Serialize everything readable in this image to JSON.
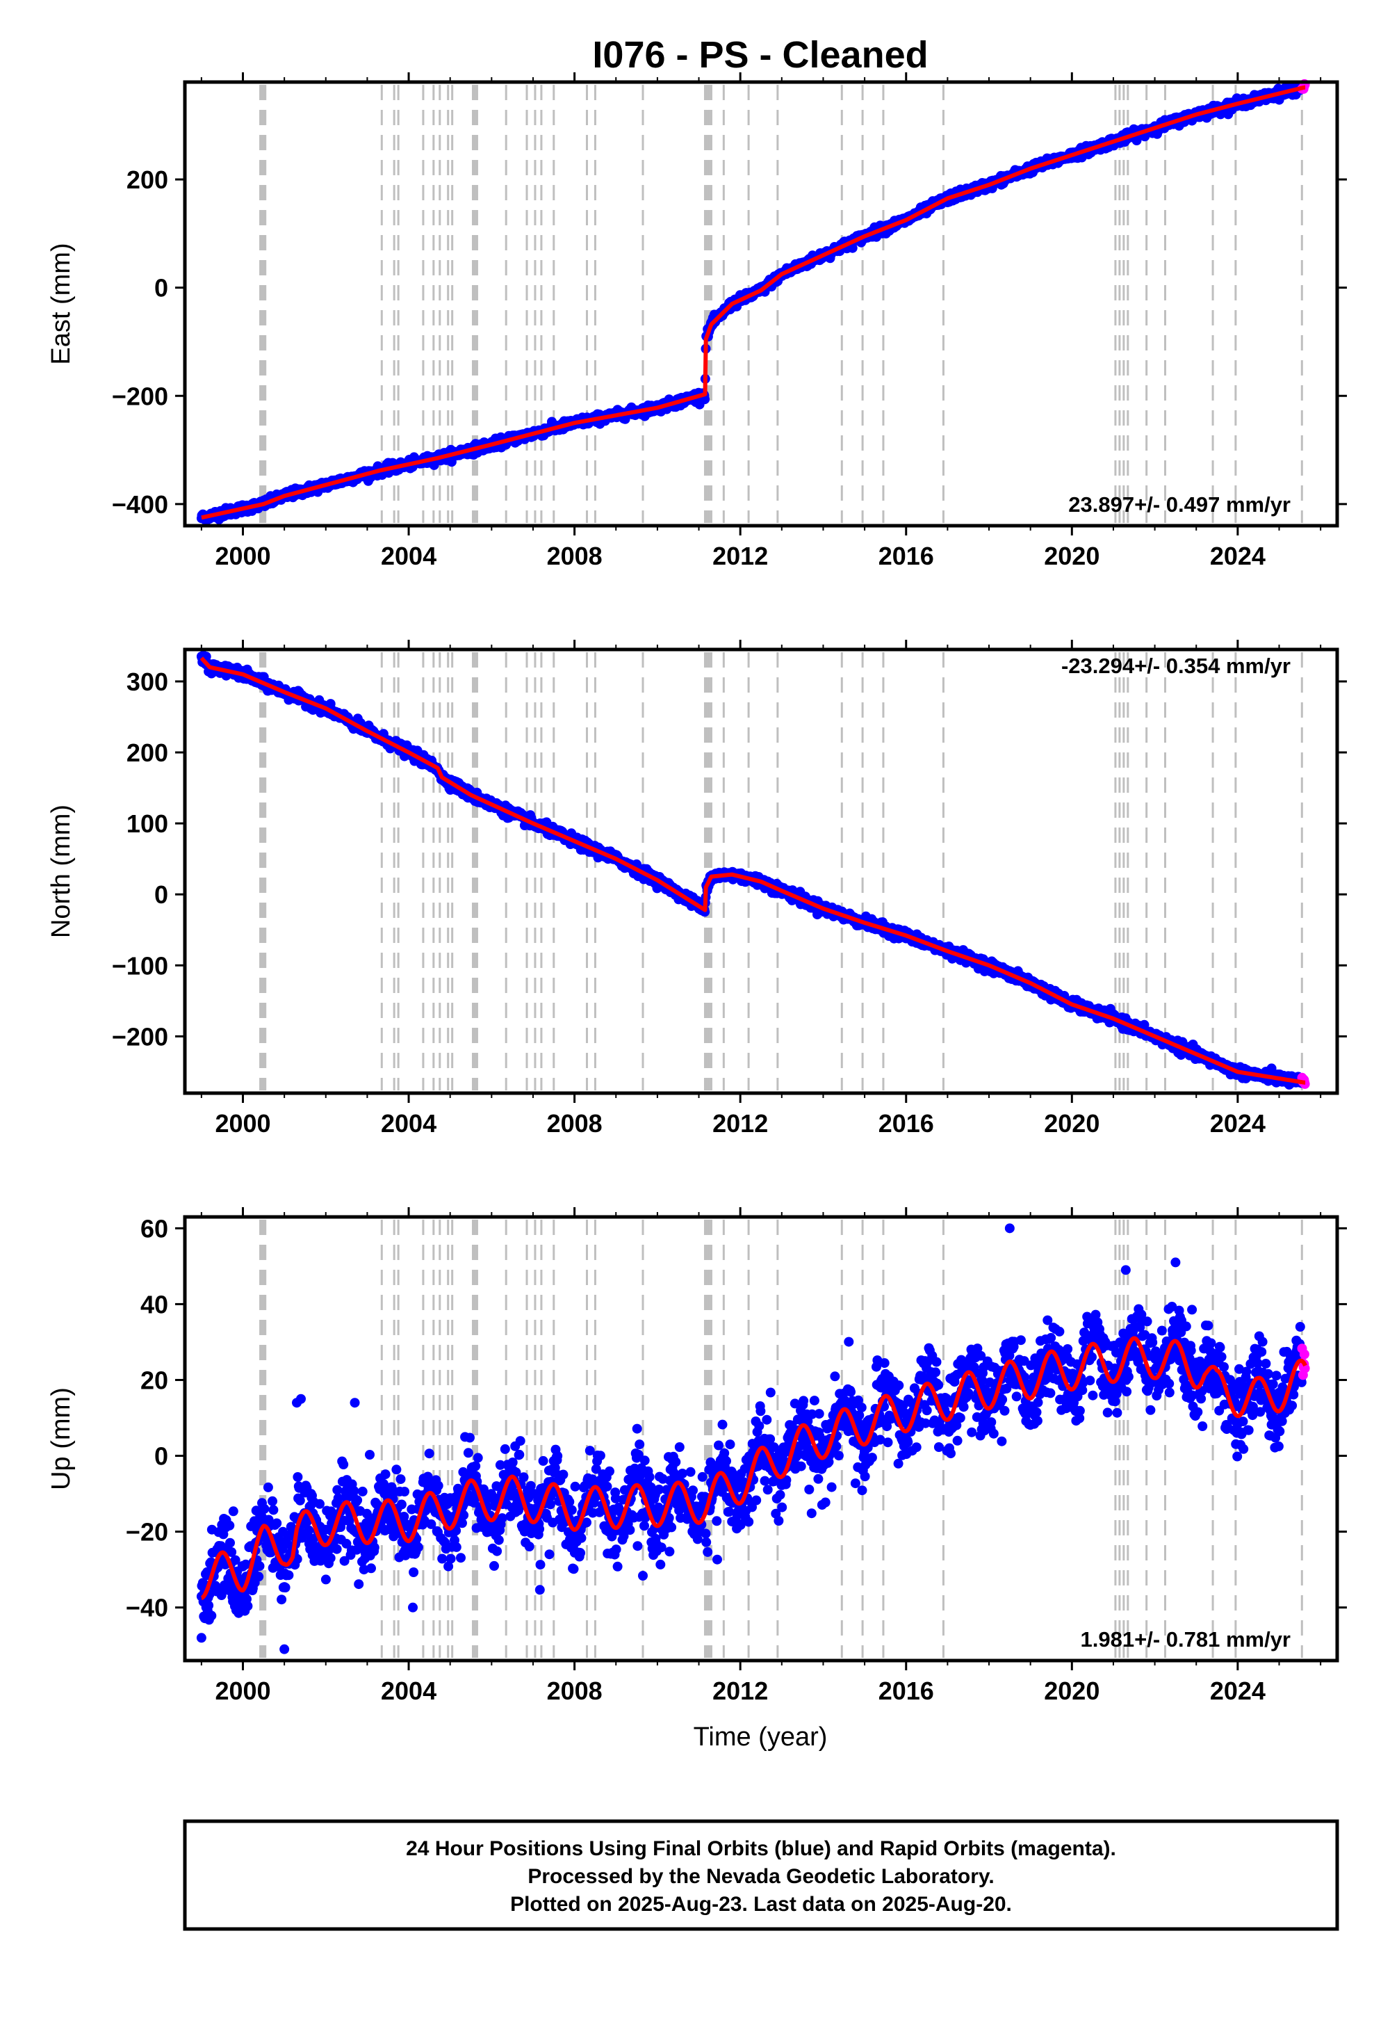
{
  "title": "I076  - PS - Cleaned",
  "xlabel": "Time (year)",
  "colors": {
    "final": "#0000ff",
    "rapid": "#ff00ff",
    "model": "#ff0000",
    "steps": "#bfbfbf"
  },
  "chart_data": [
    {
      "type": "scatter",
      "component": "east",
      "ylabel": "East (mm)",
      "xlim": [
        1998.6,
        2026.4
      ],
      "ylim": [
        -440,
        380
      ],
      "xticks": [
        2000,
        2004,
        2008,
        2012,
        2016,
        2020,
        2024
      ],
      "yticks": [
        -400,
        -200,
        0,
        200
      ],
      "rate_label": "23.897+/- 0.497 mm/yr",
      "series": {
        "knots": [
          [
            1999.0,
            -425
          ],
          [
            2000.5,
            -400
          ],
          [
            2001.0,
            -385
          ],
          [
            2003.3,
            -338
          ],
          [
            2004.7,
            -315
          ],
          [
            2006.0,
            -290
          ],
          [
            2008.0,
            -250
          ],
          [
            2010.0,
            -222
          ],
          [
            2011.15,
            -197
          ],
          [
            2011.17,
            -95
          ],
          [
            2011.3,
            -68
          ],
          [
            2011.8,
            -30
          ],
          [
            2012.5,
            -5
          ],
          [
            2013.0,
            25
          ],
          [
            2014.0,
            60
          ],
          [
            2015.0,
            95
          ],
          [
            2016.0,
            125
          ],
          [
            2017.0,
            165
          ],
          [
            2018.0,
            190
          ],
          [
            2019.0,
            220
          ],
          [
            2020.0,
            245
          ],
          [
            2021.0,
            270
          ],
          [
            2022.0,
            295
          ],
          [
            2023.0,
            320
          ],
          [
            2024.0,
            340
          ],
          [
            2025.6,
            370
          ]
        ],
        "scatter_sd": 4,
        "seasonal_amp": 0,
        "rapid_start": 2025.55
      }
    },
    {
      "type": "scatter",
      "component": "north",
      "ylabel": "North (mm)",
      "xlim": [
        1998.6,
        2026.4
      ],
      "ylim": [
        -280,
        345
      ],
      "xticks": [
        2000,
        2004,
        2008,
        2012,
        2016,
        2020,
        2024
      ],
      "yticks": [
        -200,
        -100,
        0,
        100,
        200,
        300
      ],
      "rate_label": "-23.294+/- 0.354 mm/yr",
      "series": {
        "knots": [
          [
            1999.0,
            333
          ],
          [
            1999.2,
            320
          ],
          [
            2000.0,
            310
          ],
          [
            2001.0,
            285
          ],
          [
            2002.0,
            262
          ],
          [
            2003.0,
            230
          ],
          [
            2004.0,
            200
          ],
          [
            2004.7,
            178
          ],
          [
            2004.8,
            165
          ],
          [
            2005.5,
            140
          ],
          [
            2007.0,
            100
          ],
          [
            2008.0,
            75
          ],
          [
            2009.0,
            50
          ],
          [
            2010.0,
            20
          ],
          [
            2011.15,
            -22
          ],
          [
            2011.17,
            10
          ],
          [
            2011.3,
            25
          ],
          [
            2011.8,
            28
          ],
          [
            2012.5,
            18
          ],
          [
            2013.0,
            5
          ],
          [
            2014.0,
            -20
          ],
          [
            2015.0,
            -40
          ],
          [
            2016.0,
            -58
          ],
          [
            2017.0,
            -80
          ],
          [
            2018.0,
            -100
          ],
          [
            2019.0,
            -125
          ],
          [
            2020.0,
            -155
          ],
          [
            2021.0,
            -175
          ],
          [
            2022.0,
            -200
          ],
          [
            2023.0,
            -225
          ],
          [
            2024.0,
            -250
          ],
          [
            2025.6,
            -265
          ]
        ],
        "scatter_sd": 3.5,
        "seasonal_amp": 0,
        "rapid_start": 2025.55
      }
    },
    {
      "type": "scatter",
      "component": "up",
      "ylabel": "Up (mm)",
      "xlim": [
        1998.6,
        2026.4
      ],
      "ylim": [
        -54,
        63
      ],
      "xticks": [
        2000,
        2004,
        2008,
        2012,
        2016,
        2020,
        2024
      ],
      "yticks": [
        -40,
        -20,
        0,
        20,
        40,
        60
      ],
      "rate_label": "1.981+/- 0.781 mm/yr",
      "series": {
        "knots": [
          [
            1999.0,
            -32
          ],
          [
            2000.0,
            -30
          ],
          [
            2000.5,
            -24
          ],
          [
            2001.0,
            -23
          ],
          [
            2001.2,
            -25
          ],
          [
            2001.3,
            -21
          ],
          [
            2002.0,
            -18
          ],
          [
            2004.0,
            -17
          ],
          [
            2005.5,
            -12
          ],
          [
            2006.5,
            -11
          ],
          [
            2008.0,
            -14
          ],
          [
            2010.0,
            -13
          ],
          [
            2011.2,
            -12
          ],
          [
            2012.0,
            -7
          ],
          [
            2013.0,
            0
          ],
          [
            2014.0,
            5
          ],
          [
            2016.0,
            12
          ],
          [
            2018.0,
            18
          ],
          [
            2019.5,
            22
          ],
          [
            2021.0,
            25
          ],
          [
            2022.0,
            26
          ],
          [
            2023.2,
            23
          ],
          [
            2023.5,
            17
          ],
          [
            2024.5,
            15
          ],
          [
            2025.6,
            20
          ]
        ],
        "scatter_sd": 5,
        "seasonal_amp": 5.5,
        "rapid_start": 2025.55,
        "outliers": [
          [
            2018.5,
            60
          ],
          [
            2022.5,
            51
          ],
          [
            2021.3,
            49
          ],
          [
            2001.3,
            14
          ],
          [
            2001.4,
            15
          ],
          [
            2002.7,
            14
          ],
          [
            2004.1,
            -40
          ],
          [
            2001.0,
            -51
          ],
          [
            1999.0,
            -48
          ]
        ]
      }
    }
  ],
  "step_lines": [
    2000.42,
    2000.45,
    2000.48,
    2000.51,
    2000.54,
    2003.35,
    2003.65,
    2003.75,
    2004.35,
    2004.6,
    2004.75,
    2004.95,
    2005.05,
    2005.55,
    2005.6,
    2005.65,
    2006.35,
    2006.85,
    2007.05,
    2007.2,
    2007.5,
    2008.3,
    2008.5,
    2009.65,
    2011.15,
    2011.2,
    2011.25,
    2011.3,
    2011.6,
    2012.2,
    2012.9,
    2014.45,
    2014.95,
    2015.45,
    2016.9,
    2021.05,
    2021.15,
    2021.25,
    2021.35,
    2021.8,
    2022.25,
    2023.4,
    2023.95,
    2025.55
  ],
  "footer": {
    "line1": "24 Hour Positions Using Final Orbits (blue) and Rapid Orbits (magenta).",
    "line2": "Processed by the Nevada Geodetic Laboratory.",
    "line3": "Plotted on 2025-Aug-23. Last data on 2025-Aug-20."
  }
}
